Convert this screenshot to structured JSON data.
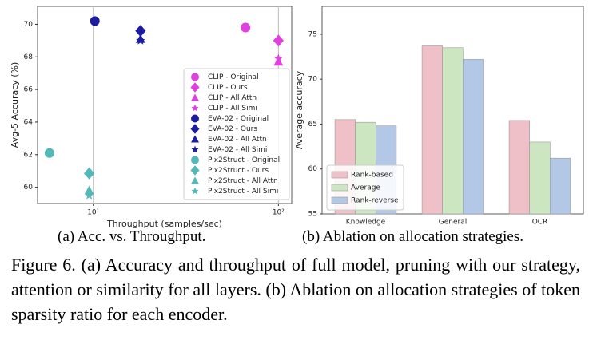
{
  "chart_data": [
    {
      "type": "scatter",
      "caption": "(a) Acc. vs. Throughput.",
      "xlabel": "Throughput (samples/sec)",
      "ylabel": "Avg-5 Accuracy (%)",
      "xscale": "log",
      "xlim": [
        5,
        118
      ],
      "xticks": [
        {
          "value": 10,
          "label": "10¹"
        },
        {
          "value": 100,
          "label": "10²"
        }
      ],
      "ylim": [
        59,
        71.1
      ],
      "yticks": [
        60,
        62,
        64,
        66,
        68,
        70
      ],
      "grid": "x",
      "legend": "lower right",
      "series": [
        {
          "name": "CLIP - Original",
          "color": "#e040e0",
          "marker": "circle",
          "x": [
            66.4
          ],
          "values": [
            69.8
          ]
        },
        {
          "name": "CLIP - Ours",
          "color": "#e040e0",
          "marker": "diamond",
          "x": [
            100
          ],
          "values": [
            69.0
          ]
        },
        {
          "name": "CLIP - All Attn",
          "color": "#e040e0",
          "marker": "triangle",
          "x": [
            100
          ],
          "values": [
            67.7
          ]
        },
        {
          "name": "CLIP - All Simi",
          "color": "#e040e0",
          "marker": "star",
          "x": [
            100
          ],
          "values": [
            67.9
          ]
        },
        {
          "name": "EVA-02 - Original",
          "color": "#1c1ca0",
          "marker": "circle",
          "x": [
            10.2
          ],
          "values": [
            70.2
          ]
        },
        {
          "name": "EVA-02 - Ours",
          "color": "#1c1ca0",
          "marker": "diamond",
          "x": [
            18
          ],
          "values": [
            69.6
          ]
        },
        {
          "name": "EVA-02 - All Attn",
          "color": "#1c1ca0",
          "marker": "triangle",
          "x": [
            18
          ],
          "values": [
            69.1
          ]
        },
        {
          "name": "EVA-02 - All Simi",
          "color": "#1c1ca0",
          "marker": "star",
          "x": [
            18
          ],
          "values": [
            69.0
          ]
        },
        {
          "name": "Pix2Struct - Original",
          "color": "#52b8b8",
          "marker": "circle",
          "x": [
            5.8
          ],
          "values": [
            62.1
          ]
        },
        {
          "name": "Pix2Struct - Ours",
          "color": "#52b8b8",
          "marker": "diamond",
          "x": [
            9.5
          ],
          "values": [
            60.85
          ]
        },
        {
          "name": "Pix2Struct - All Attn",
          "color": "#52b8b8",
          "marker": "triangle",
          "x": [
            9.5
          ],
          "values": [
            59.8
          ]
        },
        {
          "name": "Pix2Struct - All Simi",
          "color": "#52b8b8",
          "marker": "star",
          "x": [
            9.5
          ],
          "values": [
            59.5
          ]
        }
      ]
    },
    {
      "type": "bar",
      "caption": "(b) Ablation on allocation strategies.",
      "ylabel": "Average accuracy",
      "categories": [
        "Knowledge",
        "General",
        "OCR"
      ],
      "ylim": [
        55,
        78.1
      ],
      "yticks": [
        55,
        60,
        65,
        70,
        75
      ],
      "legend": "lower left",
      "series": [
        {
          "name": "Rank-based",
          "color": "#f0c0c8",
          "values": [
            65.5,
            73.7,
            65.4
          ]
        },
        {
          "name": "Average",
          "color": "#cde6c2",
          "values": [
            65.2,
            73.5,
            63.0
          ]
        },
        {
          "name": "Rank-reverse",
          "color": "#b3c8e6",
          "values": [
            64.8,
            72.2,
            61.2
          ]
        }
      ]
    }
  ],
  "figure_caption": "Figure 6. (a) Accuracy and throughput of full model, pruning with our strategy, attention or similarity for all layers. (b) Ablation on allocation strategies of token sparsity ratio for each encoder."
}
